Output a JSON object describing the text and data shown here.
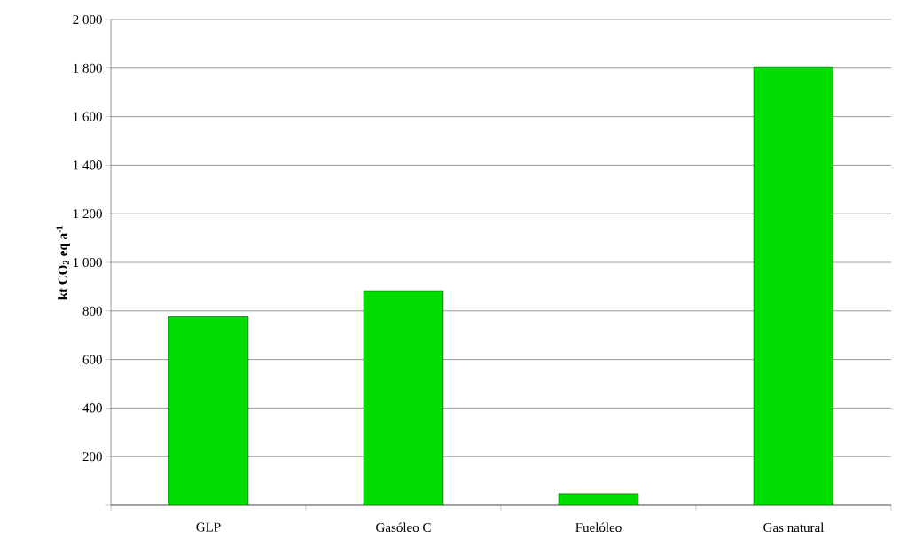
{
  "chart_data": {
    "type": "bar",
    "ylabel": "kt CO$_{2}$ eq a$^{-1}$",
    "categories": [
      "GLP",
      "Gasóleo C",
      "Fuelóleo",
      "Gas natural"
    ],
    "values": [
      776,
      883,
      48,
      1803
    ],
    "color": "#00dd00",
    "ylim": [
      0,
      2000
    ],
    "yticks": [
      {
        "value": 0,
        "label": null
      },
      200,
      400,
      600,
      800,
      {
        "value": 1000,
        "label": "1 000"
      },
      {
        "value": 1200,
        "label": "1 200"
      },
      {
        "value": 1400,
        "label": "1 400"
      },
      {
        "value": 1600,
        "label": "1 600"
      },
      {
        "value": 1800,
        "label": "1 800"
      },
      {
        "value": 2000,
        "label": "2 000"
      }
    ],
    "grid": "y"
  }
}
